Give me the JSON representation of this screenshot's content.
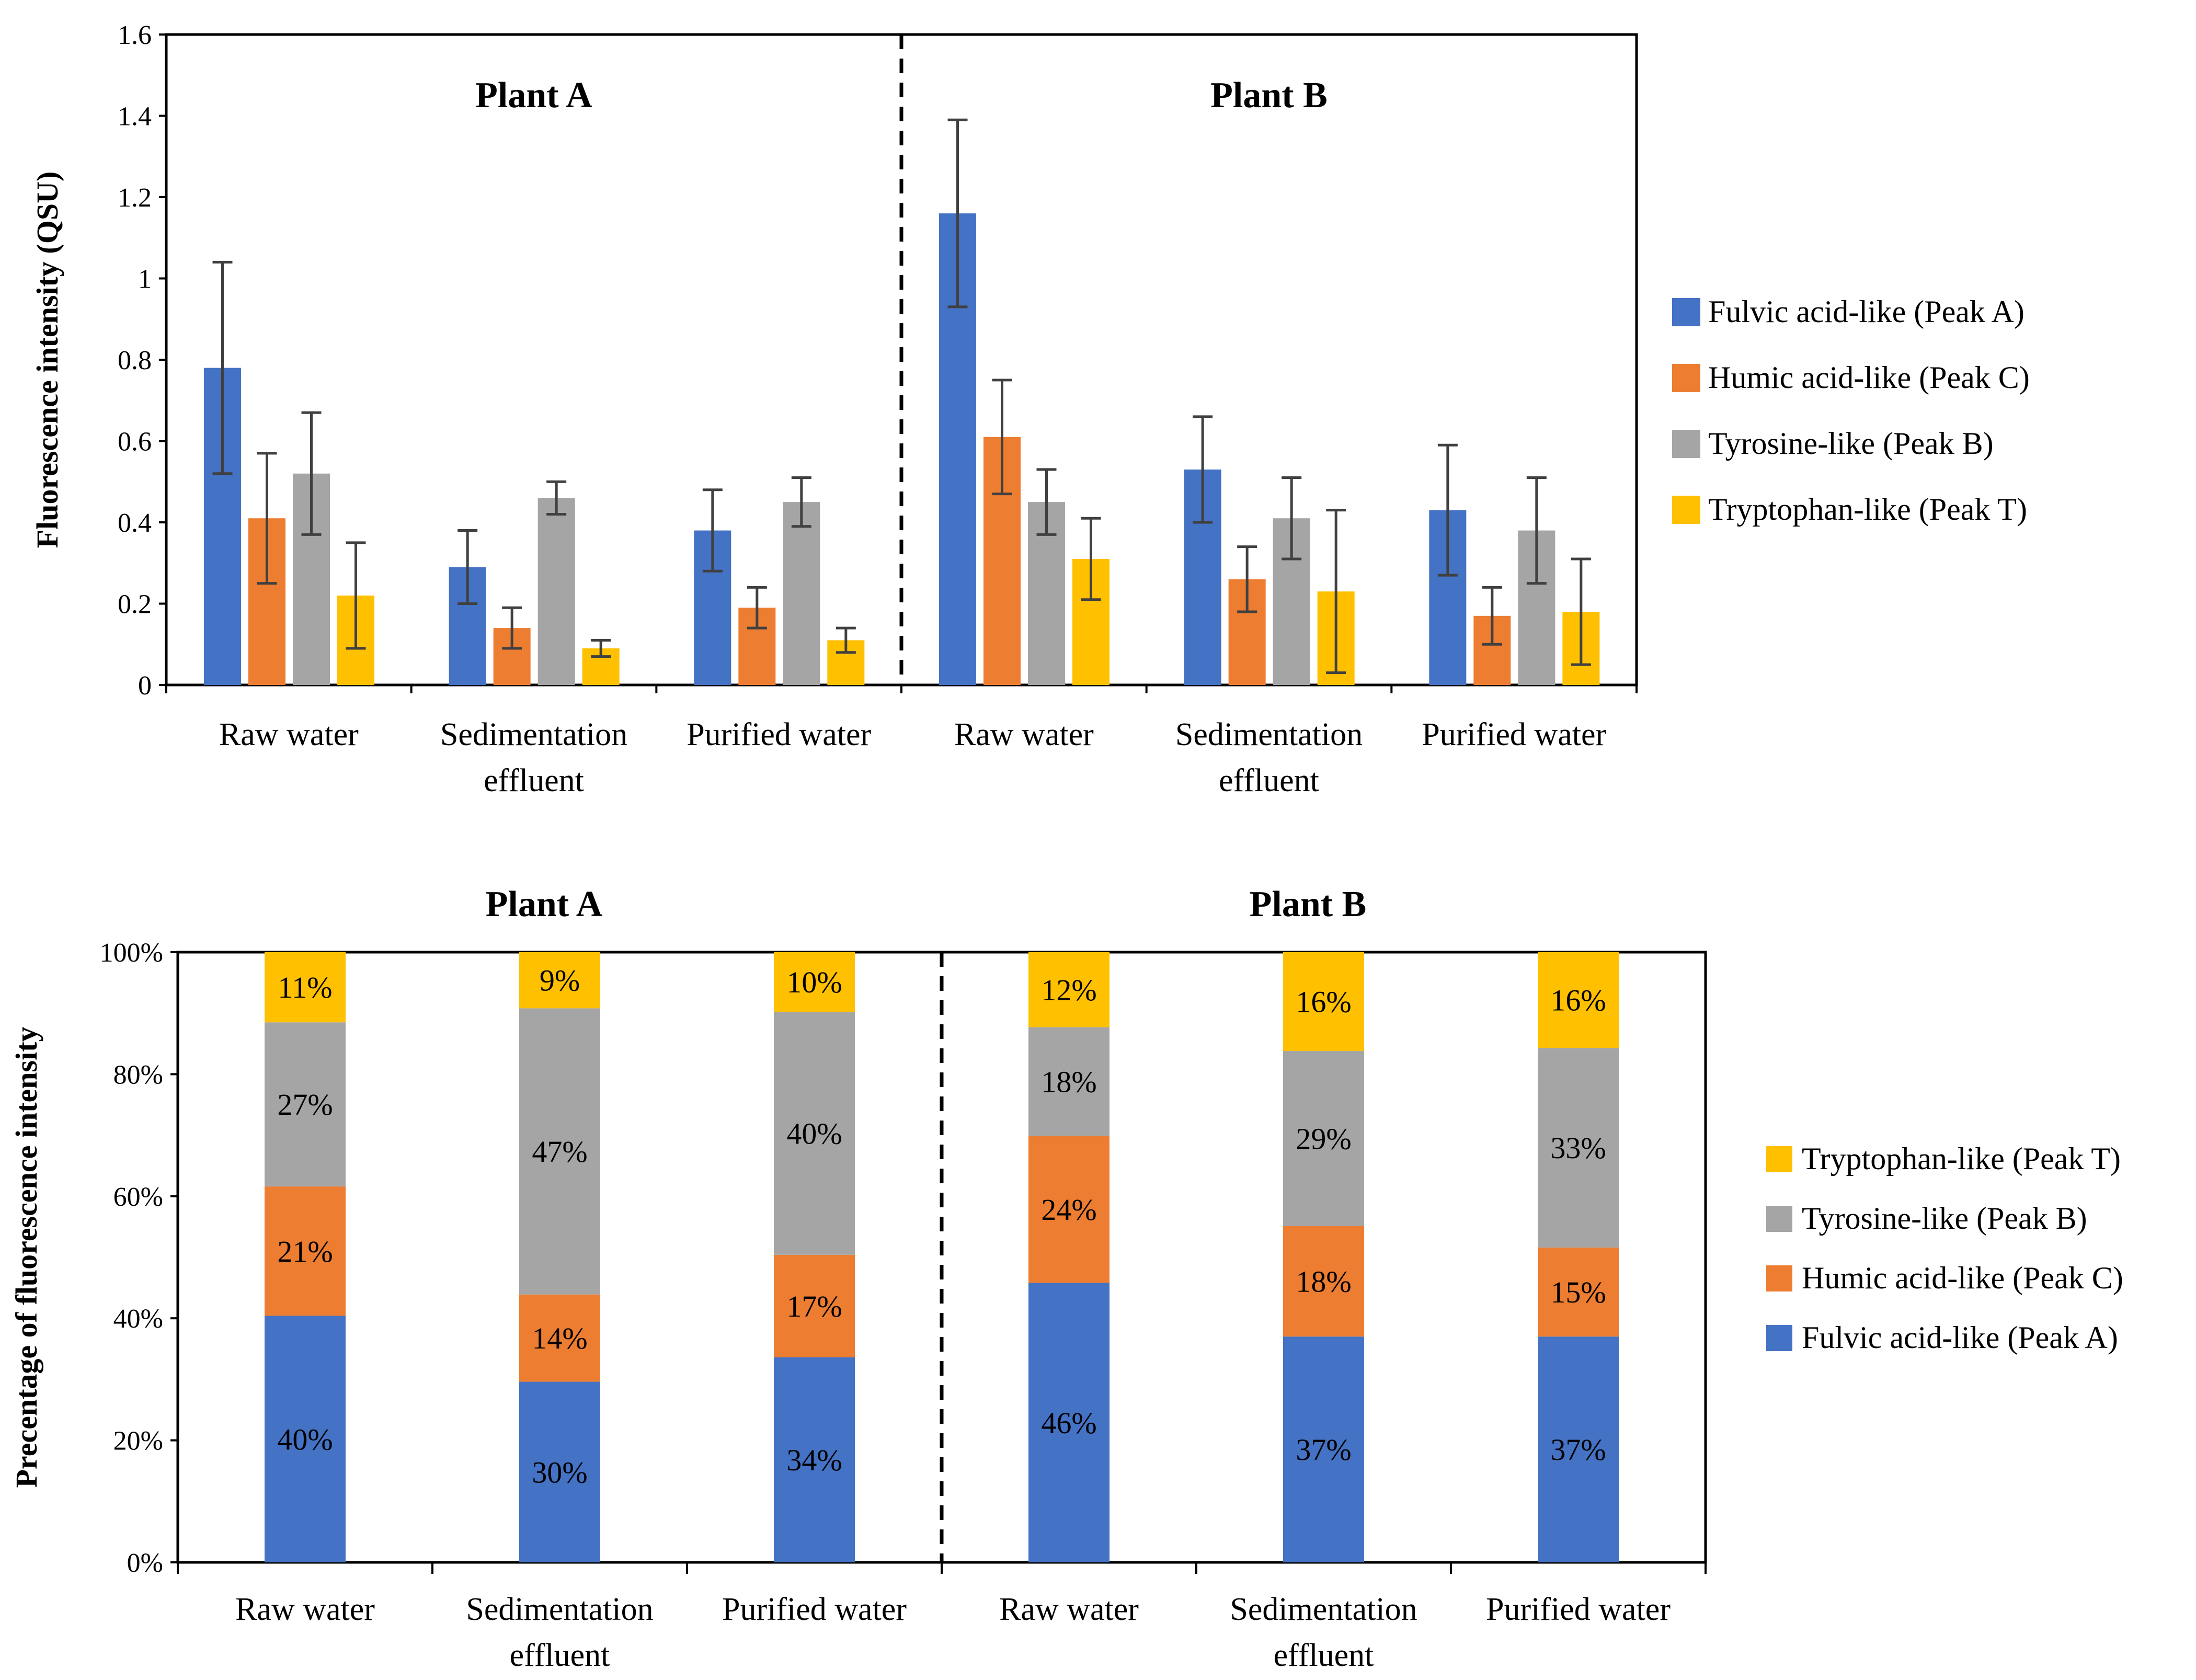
{
  "chart_data": [
    {
      "type": "bar",
      "ylabel": "Fluorescence intensity (QSU)",
      "ylim": [
        0,
        1.6
      ],
      "yticks": [
        "0",
        "0.2",
        "0.4",
        "0.6",
        "0.8",
        "1",
        "1.2",
        "1.4",
        "1.6"
      ],
      "grid": false,
      "legend_position": "right",
      "groups": [
        {
          "title": "Plant A",
          "categories": [
            {
              "line1": "Raw water",
              "line2": ""
            },
            {
              "line1": "Sedimentation",
              "line2": "effluent"
            },
            {
              "line1": "Purified water",
              "line2": ""
            }
          ]
        },
        {
          "title": "Plant B",
          "categories": [
            {
              "line1": "Raw water",
              "line2": ""
            },
            {
              "line1": "Sedimentation",
              "line2": "effluent"
            },
            {
              "line1": "Purified water",
              "line2": ""
            }
          ]
        }
      ],
      "series": [
        {
          "name": "Fulvic acid-like (Peak A)",
          "color": "#4472C4",
          "values": [
            0.78,
            0.29,
            0.38,
            1.16,
            0.53,
            0.43
          ],
          "errors": [
            0.26,
            0.09,
            0.1,
            0.23,
            0.13,
            0.16
          ]
        },
        {
          "name": "Humic acid-like (Peak C)",
          "color": "#ED7D31",
          "values": [
            0.41,
            0.14,
            0.19,
            0.61,
            0.26,
            0.17
          ],
          "errors": [
            0.16,
            0.05,
            0.05,
            0.14,
            0.08,
            0.07
          ]
        },
        {
          "name": "Tyrosine-like (Peak B)",
          "color": "#A5A5A5",
          "values": [
            0.52,
            0.46,
            0.45,
            0.45,
            0.41,
            0.38
          ],
          "errors": [
            0.15,
            0.04,
            0.06,
            0.08,
            0.1,
            0.13
          ]
        },
        {
          "name": "Tryptophan-like (Peak T)",
          "color": "#FFC000",
          "values": [
            0.22,
            0.09,
            0.11,
            0.31,
            0.23,
            0.18
          ],
          "errors": [
            0.13,
            0.02,
            0.03,
            0.1,
            0.2,
            0.13
          ]
        }
      ]
    },
    {
      "type": "stacked_bar",
      "ylabel": "Precentage of  fluorescence intensity",
      "ylim": [
        0,
        100
      ],
      "yticks": [
        "0%",
        "20%",
        "40%",
        "60%",
        "80%",
        "100%"
      ],
      "grid": false,
      "legend_position": "right",
      "groups": [
        {
          "title": "Plant A",
          "categories": [
            {
              "line1": "Raw water",
              "line2": ""
            },
            {
              "line1": "Sedimentation",
              "line2": "effluent"
            },
            {
              "line1": "Purified water",
              "line2": ""
            }
          ]
        },
        {
          "title": "Plant B",
          "categories": [
            {
              "line1": "Raw water",
              "line2": ""
            },
            {
              "line1": "Sedimentation",
              "line2": "effluent"
            },
            {
              "line1": "Purified water",
              "line2": ""
            }
          ]
        }
      ],
      "series": [
        {
          "name": "Fulvic acid-like (Peak A)",
          "color": "#4472C4",
          "values": [
            40.4,
            29.6,
            33.6,
            45.8,
            37.0,
            37.0
          ],
          "labels": [
            "40%",
            "30%",
            "34%",
            "46%",
            "37%",
            "37%"
          ]
        },
        {
          "name": "Humic acid-like (Peak C)",
          "color": "#ED7D31",
          "values": [
            21.2,
            14.3,
            16.8,
            24.1,
            18.1,
            14.6
          ],
          "labels": [
            "21%",
            "14%",
            "17%",
            "24%",
            "18%",
            "15%"
          ]
        },
        {
          "name": "Tyrosine-like (Peak B)",
          "color": "#A5A5A5",
          "values": [
            26.9,
            46.9,
            39.8,
            17.8,
            28.7,
            32.7
          ],
          "labels": [
            "27%",
            "47%",
            "40%",
            "18%",
            "29%",
            "33%"
          ]
        },
        {
          "name": "Tryptophan-like (Peak T)",
          "color": "#FFC000",
          "values": [
            11.5,
            9.2,
            9.8,
            12.3,
            16.2,
            15.7
          ],
          "labels": [
            "11%",
            "9%",
            "10%",
            "12%",
            "16%",
            "16%"
          ]
        }
      ]
    }
  ]
}
